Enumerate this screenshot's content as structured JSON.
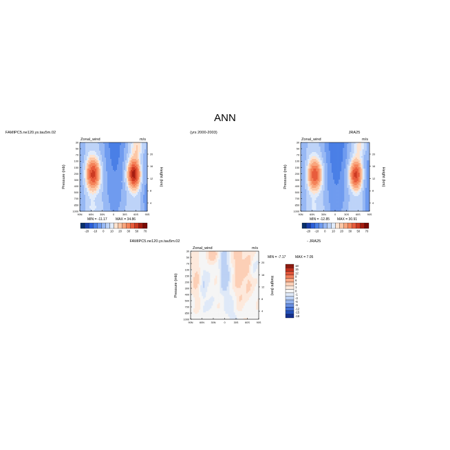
{
  "page": {
    "title": "ANN",
    "left_case": "FAMIPC5.ne120.ys.tau5m.02",
    "years": "(yrs 2000-2003)",
    "right_case": "JRA25",
    "diff_case": "FAMIPC5.ne120.ys.tau5m.02",
    "diff_minus": "- JRA25"
  },
  "chart_data": [
    {
      "type": "heatmap",
      "id": "model",
      "title": "Zonal_wind",
      "units": "m/s",
      "xlabel": "",
      "ylabel": "Pressure (mb)",
      "ylabel_right": "Height (km)",
      "x_ticks": [
        "90N",
        "60N",
        "30N",
        "0",
        "30S",
        "60S",
        "90S"
      ],
      "y_ticks": [
        "30",
        "50",
        "70",
        "100",
        "150",
        "200",
        "300",
        "400",
        "500",
        "700",
        "850",
        "1000"
      ],
      "y_ticks_right": [
        "20",
        "16",
        "12",
        "8",
        "4"
      ],
      "min": -11.17,
      "max": 34.86,
      "min_label": "MIN = -11.17",
      "max_label": "MAX = 34.86",
      "colorbar_ticks": [
        "-20",
        "-10",
        "0",
        "10",
        "20",
        "30",
        "50",
        "70"
      ],
      "colorbar_levels": [
        -35,
        -30,
        -25,
        -20,
        -15,
        -10,
        -5,
        0,
        5,
        10,
        15,
        20,
        25,
        30,
        40,
        50,
        60,
        70
      ]
    },
    {
      "type": "heatmap",
      "id": "obs",
      "title": "Zonal_wind",
      "units": "m/s",
      "xlabel": "",
      "ylabel": "Pressure (mb)",
      "ylabel_right": "Height (km)",
      "x_ticks": [
        "90N",
        "60N",
        "30N",
        "0",
        "30S",
        "60S",
        "90S"
      ],
      "y_ticks": [
        "30",
        "50",
        "70",
        "100",
        "150",
        "200",
        "300",
        "400",
        "500",
        "700",
        "850",
        "1000"
      ],
      "y_ticks_right": [
        "20",
        "16",
        "12",
        "8",
        "4"
      ],
      "min": -12.85,
      "max": 30.91,
      "min_label": "MIN = -12.85",
      "max_label": "MAX = 30.91",
      "colorbar_ticks": [
        "-20",
        "-10",
        "0",
        "10",
        "20",
        "30",
        "50",
        "70"
      ],
      "colorbar_levels": [
        -35,
        -30,
        -25,
        -20,
        -15,
        -10,
        -5,
        0,
        5,
        10,
        15,
        20,
        25,
        30,
        40,
        50,
        60,
        70
      ]
    },
    {
      "type": "heatmap",
      "id": "diff",
      "title": "Zonal_wind",
      "units": "m/s",
      "xlabel": "",
      "ylabel": "Pressure (mb)",
      "ylabel_right": "Height (km)",
      "x_ticks": [
        "90N",
        "60N",
        "30N",
        "0",
        "30S",
        "60S",
        "90S"
      ],
      "y_ticks": [
        "30",
        "50",
        "70",
        "100",
        "150",
        "200",
        "300",
        "400",
        "500",
        "700",
        "850",
        "1000"
      ],
      "y_ticks_right": [
        "20",
        "16",
        "12",
        "8",
        "4"
      ],
      "min": -7.17,
      "max": 7.05,
      "min_label": "MIN =  -7.17",
      "max_label": "MAX =   7.05",
      "colorbar_ticks": [
        "18",
        "15",
        "12",
        "9",
        "6",
        "3",
        "1",
        "0",
        "-1",
        "-3",
        "-6",
        "-9",
        "-12",
        "-15",
        "-18"
      ]
    }
  ],
  "colors": {
    "blues": [
      "#08306b",
      "#1a3fa8",
      "#2b5fd9",
      "#4a7fe6",
      "#6f9bef",
      "#97b8f4",
      "#bdd3f8",
      "#e0ebfb"
    ],
    "reds": [
      "#fde3d0",
      "#fcc7a6",
      "#f9a57d",
      "#f48259",
      "#e85c3c",
      "#cc3a22",
      "#a51d11",
      "#7a0a05"
    ],
    "diff_scale": [
      "#8c1a0f",
      "#c0301e",
      "#e0553a",
      "#f17f5c",
      "#f9a987",
      "#fccfb6",
      "#fde9dc",
      "#f5f5f5",
      "#dfe9f8",
      "#bcd1f4",
      "#93b3ee",
      "#6990e4",
      "#4270d6",
      "#2450b9",
      "#142f8d"
    ]
  }
}
